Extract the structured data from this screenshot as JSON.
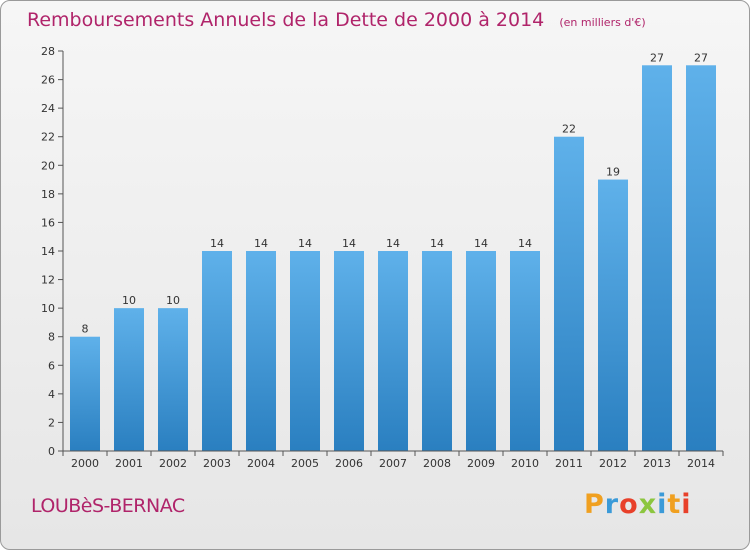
{
  "header": {
    "title": "Remboursements Annuels de la Dette de 2000 à 2014",
    "subtitle": "(en milliers d'€)"
  },
  "footer": {
    "commune": "LOUBèS-BERNAC",
    "logo_letters": [
      "P",
      "r",
      "o",
      "x",
      "i",
      "t",
      "i"
    ],
    "logo_colors": [
      "#f0a020",
      "#3a9ad8",
      "#e8402a",
      "#8cc63f",
      "#3a9ad8",
      "#f0a020",
      "#e8402a"
    ]
  },
  "chart_data": {
    "type": "bar",
    "categories": [
      "2000",
      "2001",
      "2002",
      "2003",
      "2004",
      "2005",
      "2006",
      "2007",
      "2008",
      "2009",
      "2010",
      "2011",
      "2012",
      "2013",
      "2014"
    ],
    "values": [
      8,
      10,
      10,
      14,
      14,
      14,
      14,
      14,
      14,
      14,
      14,
      22,
      19,
      27,
      27
    ],
    "data_labels": [
      "8",
      "10",
      "10",
      "14",
      "14",
      "14",
      "14",
      "14",
      "14",
      "14",
      "14",
      "22",
      "19",
      "27",
      "27"
    ],
    "y_ticks": [
      "0",
      "2",
      "4",
      "6",
      "8",
      "10",
      "12",
      "14",
      "16",
      "18",
      "20",
      "22",
      "24",
      "26",
      "28"
    ],
    "ylim": [
      0,
      28
    ],
    "grid": false,
    "bar_color_top": "#5fb1ea",
    "bar_color_bottom": "#2a7fc0",
    "title": "Remboursements Annuels de la Dette de 2000 à 2014",
    "xlabel": "",
    "ylabel": ""
  }
}
